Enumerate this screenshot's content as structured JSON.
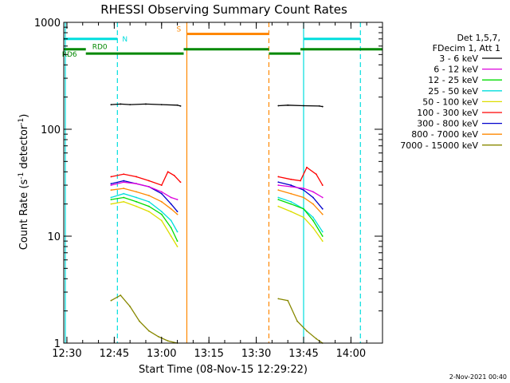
{
  "chart_data": {
    "type": "line",
    "title": "RHESSI Observing Summary Count Rates",
    "xlabel": "Start Time (08-Nov-15 12:29:22)",
    "ylabel_main": "Count Rate (s",
    "ylabel_sup1": "-1",
    "ylabel_mid": " detector",
    "ylabel_sup2": "-1",
    "ylabel_end": ")",
    "footer": "2-Nov-2021 00:40",
    "y_scale": "log",
    "ylim": [
      1,
      1000
    ],
    "xlim": [
      "12:29",
      "14:10"
    ],
    "x_ticks": [
      "12:30",
      "12:45",
      "13:00",
      "13:15",
      "13:30",
      "13:45",
      "14:00"
    ],
    "y_ticks": [
      "1",
      "10",
      "100",
      "1000"
    ],
    "legend_header": [
      "Det 1,5,7,",
      "FDecim 1, Att 1"
    ],
    "series": [
      {
        "name": "3 - 6 keV",
        "color": "#000000",
        "segments": [
          {
            "x": [
              "12:44",
              "12:47",
              "12:50",
              "12:55",
              "13:00",
              "13:05",
              "13:06"
            ],
            "y": [
              170,
              172,
              170,
              172,
              170,
              168,
              165
            ]
          },
          {
            "x": [
              "13:37",
              "13:40",
              "13:45",
              "13:50",
              "13:51"
            ],
            "y": [
              166,
              168,
              166,
              165,
              163
            ]
          }
        ]
      },
      {
        "name": "6 - 12 keV",
        "color": "#dd00dd",
        "segments": [
          {
            "x": [
              "12:44",
              "12:48",
              "12:52",
              "12:56",
              "13:00",
              "13:03",
              "13:05"
            ],
            "y": [
              30,
              32,
              31,
              29,
              26,
              23,
              22
            ]
          },
          {
            "x": [
              "13:37",
              "13:41",
              "13:45",
              "13:48",
              "13:51"
            ],
            "y": [
              30,
              29,
              28,
              26,
              23
            ]
          }
        ]
      },
      {
        "name": "12 - 25 keV",
        "color": "#00dd00",
        "segments": [
          {
            "x": [
              "12:44",
              "12:48",
              "12:52",
              "12:56",
              "13:00",
              "13:03",
              "13:05"
            ],
            "y": [
              22,
              23,
              21,
              19,
              16,
              12,
              9
            ]
          },
          {
            "x": [
              "13:37",
              "13:41",
              "13:45",
              "13:48",
              "13:51"
            ],
            "y": [
              22,
              20,
              18,
              14,
              10
            ]
          }
        ]
      },
      {
        "name": "25 - 50 keV",
        "color": "#00dddd",
        "segments": [
          {
            "x": [
              "12:44",
              "12:48",
              "12:52",
              "12:56",
              "13:00",
              "13:03",
              "13:05"
            ],
            "y": [
              23,
              25,
              23,
              21,
              17,
              14,
              11
            ]
          },
          {
            "x": [
              "13:37",
              "13:41",
              "13:45",
              "13:48",
              "13:51"
            ],
            "y": [
              23,
              21,
              18,
              15,
              11
            ]
          }
        ]
      },
      {
        "name": "50 - 100 keV",
        "color": "#dddd00",
        "segments": [
          {
            "x": [
              "12:44",
              "12:48",
              "12:52",
              "12:56",
              "13:00",
              "13:03",
              "13:05"
            ],
            "y": [
              20,
              21,
              19,
              17,
              14,
              10,
              8
            ]
          },
          {
            "x": [
              "13:37",
              "13:41",
              "13:45",
              "13:48",
              "13:51"
            ],
            "y": [
              19,
              17,
              15,
              12,
              9
            ]
          }
        ]
      },
      {
        "name": "100 - 300 keV",
        "color": "#ff0000",
        "segments": [
          {
            "x": [
              "12:44",
              "12:48",
              "12:52",
              "12:56",
              "13:00",
              "13:02",
              "13:04",
              "13:06"
            ],
            "y": [
              36,
              38,
              36,
              33,
              30,
              40,
              37,
              32
            ]
          },
          {
            "x": [
              "13:37",
              "13:41",
              "13:44",
              "13:46",
              "13:49",
              "13:51"
            ],
            "y": [
              36,
              34,
              33,
              44,
              38,
              30
            ]
          }
        ]
      },
      {
        "name": "300 - 800 keV",
        "color": "#0000cc",
        "segments": [
          {
            "x": [
              "12:44",
              "12:48",
              "12:52",
              "12:56",
              "13:00",
              "13:03",
              "13:05"
            ],
            "y": [
              31,
              33,
              31,
              29,
              25,
              20,
              17
            ]
          },
          {
            "x": [
              "13:37",
              "13:41",
              "13:45",
              "13:48",
              "13:51"
            ],
            "y": [
              32,
              30,
              27,
              23,
              18
            ]
          }
        ]
      },
      {
        "name": "800 - 7000 keV",
        "color": "#ff8800",
        "segments": [
          {
            "x": [
              "12:44",
              "12:48",
              "12:52",
              "12:56",
              "13:00",
              "13:03",
              "13:05"
            ],
            "y": [
              27,
              28,
              26,
              24,
              21,
              18,
              16
            ]
          },
          {
            "x": [
              "13:37",
              "13:41",
              "13:45",
              "13:48",
              "13:51"
            ],
            "y": [
              27,
              25,
              23,
              20,
              16
            ]
          }
        ]
      },
      {
        "name": "7000 - 15000 keV",
        "color": "#888800",
        "segments": [
          {
            "x": [
              "12:44",
              "12:47",
              "12:50",
              "12:53",
              "12:56",
              "12:59",
              "13:02",
              "13:05"
            ],
            "y": [
              2.5,
              2.8,
              2.2,
              1.6,
              1.3,
              1.15,
              1.05,
              1.0
            ]
          },
          {
            "x": [
              "13:37",
              "13:40",
              "13:43",
              "13:46",
              "13:49",
              "13:51"
            ],
            "y": [
              2.6,
              2.5,
              1.6,
              1.3,
              1.1,
              1.0
            ]
          }
        ]
      }
    ],
    "flags": [
      {
        "label": "N",
        "color": "#00dddd",
        "x_start": "12:29",
        "x_end": "12:46",
        "level": 700
      },
      {
        "label": "",
        "color": "#00dddd",
        "x_start": "13:45",
        "x_end": "14:03",
        "level": 700
      },
      {
        "label": "S",
        "color": "#ff8800",
        "x_start": "13:08",
        "x_end": "13:34",
        "level": 780
      },
      {
        "label": "RD0",
        "color": "#008800",
        "x_start": "12:29",
        "x_end": "12:36",
        "level": 560
      },
      {
        "label": "RD6",
        "color": "#008800",
        "x_start": "12:36",
        "x_end": "13:07",
        "level": 510
      },
      {
        "label": "",
        "color": "#008800",
        "x_start": "13:07",
        "x_end": "13:34",
        "level": 560
      },
      {
        "label": "",
        "color": "#008800",
        "x_start": "13:34",
        "x_end": "13:44",
        "level": 510
      },
      {
        "label": "",
        "color": "#008800",
        "x_start": "13:44",
        "x_end": "14:10",
        "level": 560
      }
    ],
    "vlines": [
      {
        "x": "12:29:30",
        "color": "#00dddd",
        "style": "solid"
      },
      {
        "x": "12:46",
        "color": "#00dddd",
        "style": "dashed"
      },
      {
        "x": "13:08",
        "color": "#ff8800",
        "style": "solid"
      },
      {
        "x": "13:34",
        "color": "#ff8800",
        "style": "dashed"
      },
      {
        "x": "13:45",
        "color": "#00dddd",
        "style": "solid"
      },
      {
        "x": "14:03",
        "color": "#00dddd",
        "style": "dashed"
      }
    ]
  }
}
